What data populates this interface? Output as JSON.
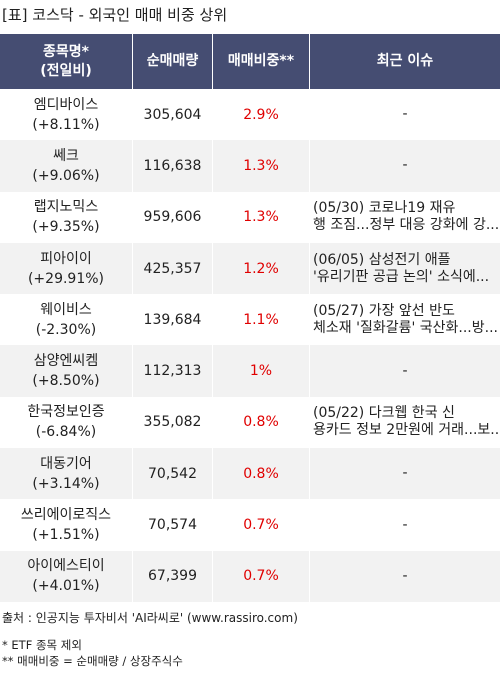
{
  "title": "[표] 코스닥 - 외국인 매매 비중 상위",
  "headers": {
    "name_line1": "종목명*",
    "name_line2": "(전일비)",
    "volume": "순매매량",
    "ratio": "매매비중**",
    "issue": "최근 이슈"
  },
  "rows": [
    {
      "name": "엠디바이스",
      "change": "(+8.11%)",
      "volume": "305,604",
      "ratio": "2.9%",
      "issue1": "-",
      "issue2": ""
    },
    {
      "name": "쎄크",
      "change": "(+9.06%)",
      "volume": "116,638",
      "ratio": "1.3%",
      "issue1": "-",
      "issue2": ""
    },
    {
      "name": "랩지노믹스",
      "change": "(+9.35%)",
      "volume": "959,606",
      "ratio": "1.3%",
      "issue1": "(05/30) 코로나19 재유",
      "issue2": "행 조짐...정부 대응 강화에 강..."
    },
    {
      "name": "피아이이",
      "change": "(+29.91%)",
      "volume": "425,357",
      "ratio": "1.2%",
      "issue1": "(06/05) 삼성전기 애플",
      "issue2": "'유리기판 공급 논의' 소식에..."
    },
    {
      "name": "웨이비스",
      "change": "(-2.30%)",
      "volume": "139,684",
      "ratio": "1.1%",
      "issue1": "(05/27) 가장 앞선 반도",
      "issue2": "체소재 '질화갈륨' 국산화...방..."
    },
    {
      "name": "삼양엔씨켐",
      "change": "(+8.50%)",
      "volume": "112,313",
      "ratio": "1%",
      "issue1": "-",
      "issue2": ""
    },
    {
      "name": "한국정보인증",
      "change": "(-6.84%)",
      "volume": "355,082",
      "ratio": "0.8%",
      "issue1": "(05/22) 다크웹 한국 신",
      "issue2": "용카드 정보 2만원에 거래...보..."
    },
    {
      "name": "대동기어",
      "change": "(+3.14%)",
      "volume": "70,542",
      "ratio": "0.8%",
      "issue1": "-",
      "issue2": ""
    },
    {
      "name": "쓰리에이로직스",
      "change": "(+1.51%)",
      "volume": "70,574",
      "ratio": "0.7%",
      "issue1": "-",
      "issue2": ""
    },
    {
      "name": "아이에스티이",
      "change": "(+4.01%)",
      "volume": "67,399",
      "ratio": "0.7%",
      "issue1": "-",
      "issue2": ""
    }
  ],
  "source": "출처 : 인공지능 투자비서 'AI라씨로' (www.rassiro.com)",
  "note1": "* ETF 종목 제외",
  "note2": "** 매매비중 = 순매매량 / 상장주식수",
  "colors": {
    "header_bg": "#454d72",
    "header_text": "#ffffff",
    "ratio_text": "#e00000",
    "row_alt_bg": "#f2f2f2"
  }
}
